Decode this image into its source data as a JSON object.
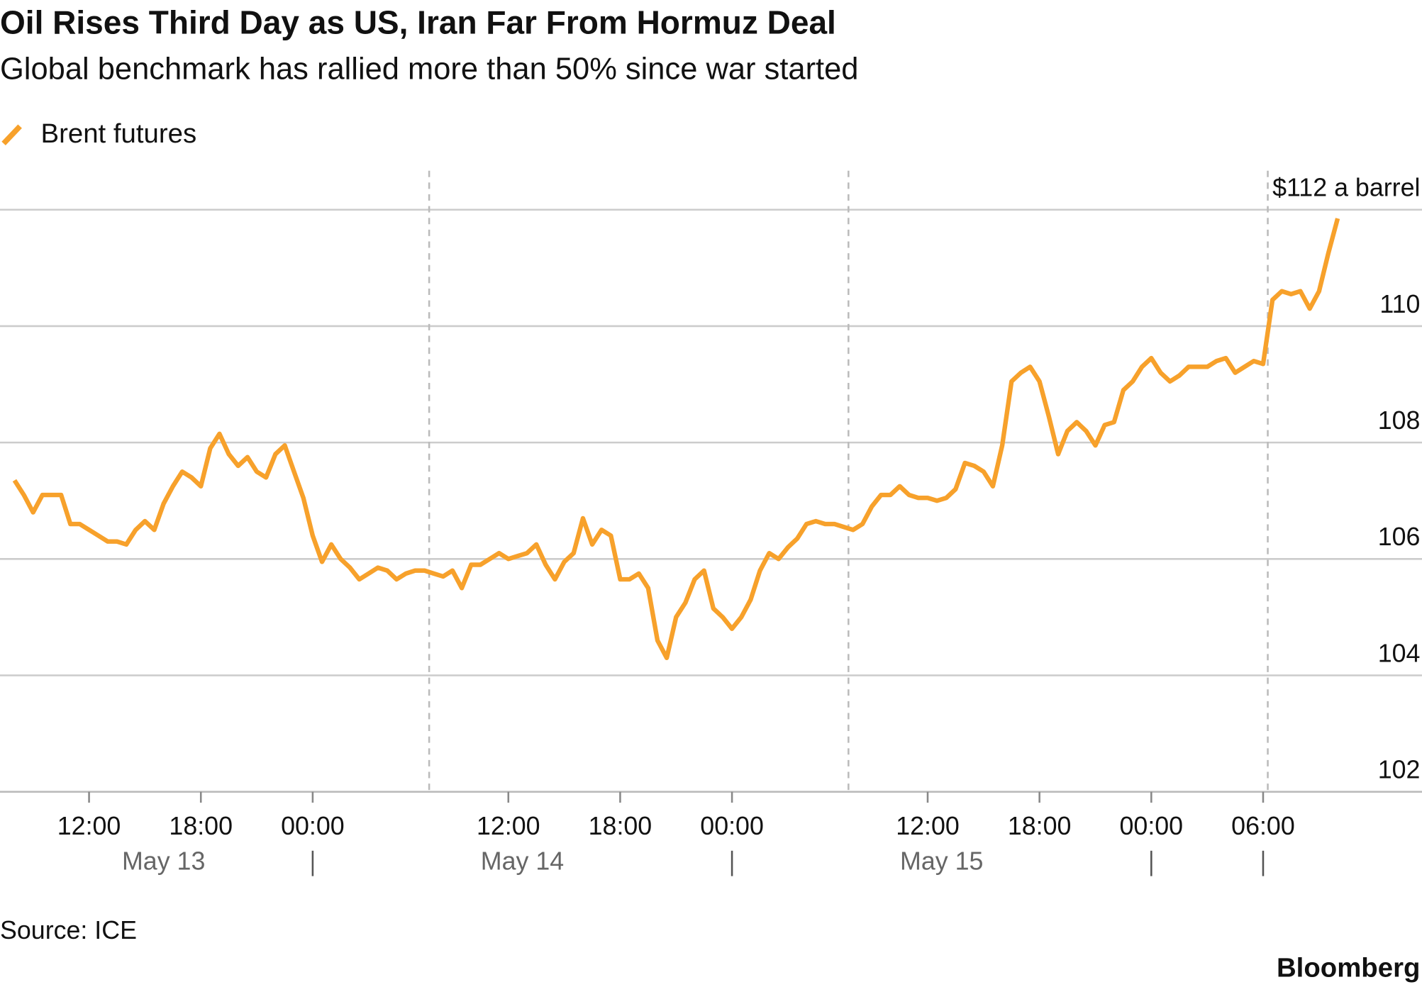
{
  "chart_data": {
    "type": "line",
    "title": "Oil Rises Third Day as US, Iran Far From Hormuz Deal",
    "subtitle": "Global benchmark has rallied more than 50% since war started",
    "source": "Source: ICE",
    "brand": "Bloomberg",
    "x": [
      "May 13 08:00",
      "May 13 08:30",
      "May 13 09:00",
      "May 13 09:30",
      "May 13 10:00",
      "May 13 10:30",
      "May 13 11:00",
      "May 13 11:30",
      "May 13 12:00",
      "May 13 12:30",
      "May 13 13:00",
      "May 13 13:30",
      "May 13 14:00",
      "May 13 14:30",
      "May 13 15:00",
      "May 13 15:30",
      "May 13 16:00",
      "May 13 16:30",
      "May 13 17:00",
      "May 13 17:30",
      "May 13 18:00",
      "May 13 18:30",
      "May 13 19:00",
      "May 13 19:30",
      "May 13 20:00",
      "May 13 20:30",
      "May 13 21:00",
      "May 13 21:30",
      "May 13 22:00",
      "May 13 22:30",
      "May 13 23:00",
      "May 13 23:30",
      "May 14 00:00",
      "May 14 00:30",
      "May 14 01:00",
      "May 14 01:30",
      "May 14 02:00",
      "May 14 02:30",
      "May 14 03:00",
      "May 14 03:30",
      "May 14 04:00",
      "May 14 04:30",
      "May 14 05:00",
      "May 14 05:30",
      "May 14 06:00",
      "May 14 08:00",
      "May 14 08:30",
      "May 14 09:00",
      "May 14 09:30",
      "May 14 10:00",
      "May 14 10:30",
      "May 14 11:00",
      "May 14 11:30",
      "May 14 12:00",
      "May 14 12:30",
      "May 14 13:00",
      "May 14 13:30",
      "May 14 14:00",
      "May 14 14:30",
      "May 14 15:00",
      "May 14 15:30",
      "May 14 16:00",
      "May 14 16:30",
      "May 14 17:00",
      "May 14 17:30",
      "May 14 18:00",
      "May 14 18:30",
      "May 14 19:00",
      "May 14 19:30",
      "May 14 20:00",
      "May 14 20:30",
      "May 14 21:00",
      "May 14 21:30",
      "May 14 22:00",
      "May 14 22:30",
      "May 14 23:00",
      "May 14 23:30",
      "May 15 00:00",
      "May 15 00:30",
      "May 15 01:00",
      "May 15 01:30",
      "May 15 02:00",
      "May 15 02:30",
      "May 15 03:00",
      "May 15 03:30",
      "May 15 04:00",
      "May 15 04:30",
      "May 15 05:00",
      "May 15 05:30",
      "May 15 06:00",
      "May 15 08:00",
      "May 15 08:30",
      "May 15 09:00",
      "May 15 09:30",
      "May 15 10:00",
      "May 15 10:30",
      "May 15 11:00",
      "May 15 11:30",
      "May 15 12:00",
      "May 15 12:30",
      "May 15 13:00",
      "May 15 13:30",
      "May 15 14:00",
      "May 15 14:30",
      "May 15 15:00",
      "May 15 15:30",
      "May 15 16:00",
      "May 15 16:30",
      "May 15 17:00",
      "May 15 17:30",
      "May 15 18:00",
      "May 15 18:30",
      "May 15 19:00",
      "May 15 19:30",
      "May 15 20:00",
      "May 15 20:30",
      "May 15 21:00",
      "May 15 21:30",
      "May 15 22:00",
      "May 15 22:30",
      "May 15 23:00",
      "May 15 23:30",
      "May 16 00:00",
      "May 16 00:30",
      "May 16 01:00",
      "May 16 01:30",
      "May 16 02:00",
      "May 16 02:30",
      "May 16 03:00",
      "May 16 03:30",
      "May 16 04:00",
      "May 16 04:30",
      "May 16 05:00",
      "May 16 05:30",
      "May 16 06:00",
      "May 16 08:00",
      "May 16 08:30",
      "May 16 09:00",
      "May 16 09:30",
      "May 16 10:00",
      "May 16 10:30",
      "May 16 11:00",
      "May 16 11:30"
    ],
    "series": [
      {
        "name": "Brent futures",
        "color": "#f7a12b",
        "values": [
          107.35,
          107.1,
          106.8,
          107.1,
          107.1,
          107.1,
          106.6,
          106.6,
          106.5,
          106.4,
          106.3,
          106.3,
          106.25,
          106.5,
          106.65,
          106.5,
          106.95,
          107.25,
          107.5,
          107.4,
          107.25,
          107.9,
          108.15,
          107.8,
          107.6,
          107.75,
          107.5,
          107.4,
          107.8,
          107.95,
          107.5,
          107.05,
          106.4,
          105.95,
          106.25,
          106.0,
          105.85,
          105.65,
          105.75,
          105.85,
          105.8,
          105.65,
          105.75,
          105.8,
          105.8,
          105.75,
          105.7,
          105.8,
          105.5,
          105.9,
          105.9,
          106.0,
          106.1,
          106.0,
          106.05,
          106.1,
          106.25,
          105.9,
          105.65,
          105.95,
          106.1,
          106.7,
          106.25,
          106.5,
          106.4,
          105.65,
          105.65,
          105.75,
          105.5,
          104.6,
          104.3,
          105.0,
          105.25,
          105.65,
          105.8,
          105.15,
          105.0,
          104.8,
          105.0,
          105.3,
          105.8,
          106.1,
          106.0,
          106.2,
          106.35,
          106.6,
          106.65,
          106.6,
          106.6,
          106.55,
          106.5,
          106.6,
          106.9,
          107.1,
          107.1,
          107.25,
          107.1,
          107.05,
          107.05,
          107.0,
          107.05,
          107.2,
          107.65,
          107.6,
          107.5,
          107.25,
          107.95,
          109.05,
          109.2,
          109.3,
          109.05,
          108.45,
          107.8,
          108.2,
          108.35,
          108.2,
          107.95,
          108.3,
          108.35,
          108.9,
          109.05,
          109.3,
          109.45,
          109.2,
          109.05,
          109.15,
          109.3,
          109.3,
          109.3,
          109.4,
          109.45,
          109.2,
          109.3,
          109.4,
          109.35,
          110.45,
          110.6,
          110.55,
          110.6,
          110.3,
          110.6,
          111.25,
          111.85
        ]
      }
    ],
    "ylim": [
      102,
      112
    ],
    "yticks": [
      102,
      104,
      106,
      108,
      110,
      {
        "value": 112,
        "label": "$112 a barrel"
      }
    ],
    "xticks": [
      {
        "value": "May 13 12:00",
        "label": "12:00"
      },
      {
        "value": "May 13 18:00",
        "label": "18:00"
      },
      {
        "value": "May 14 00:00",
        "label": "00:00"
      },
      {
        "value": "May 14 12:00",
        "label": "12:00"
      },
      {
        "value": "May 14 18:00",
        "label": "18:00"
      },
      {
        "value": "May 15 00:00",
        "label": "00:00"
      },
      {
        "value": "May 15 12:00",
        "label": "12:00"
      },
      {
        "value": "May 15 18:00",
        "label": "18:00"
      },
      {
        "value": "May 16 00:00",
        "label": "00:00"
      },
      {
        "value": "May 16 06:00",
        "label": "06:00"
      }
    ],
    "date_labels": [
      "May 13",
      "May 14",
      "May 15"
    ],
    "grid": true
  }
}
